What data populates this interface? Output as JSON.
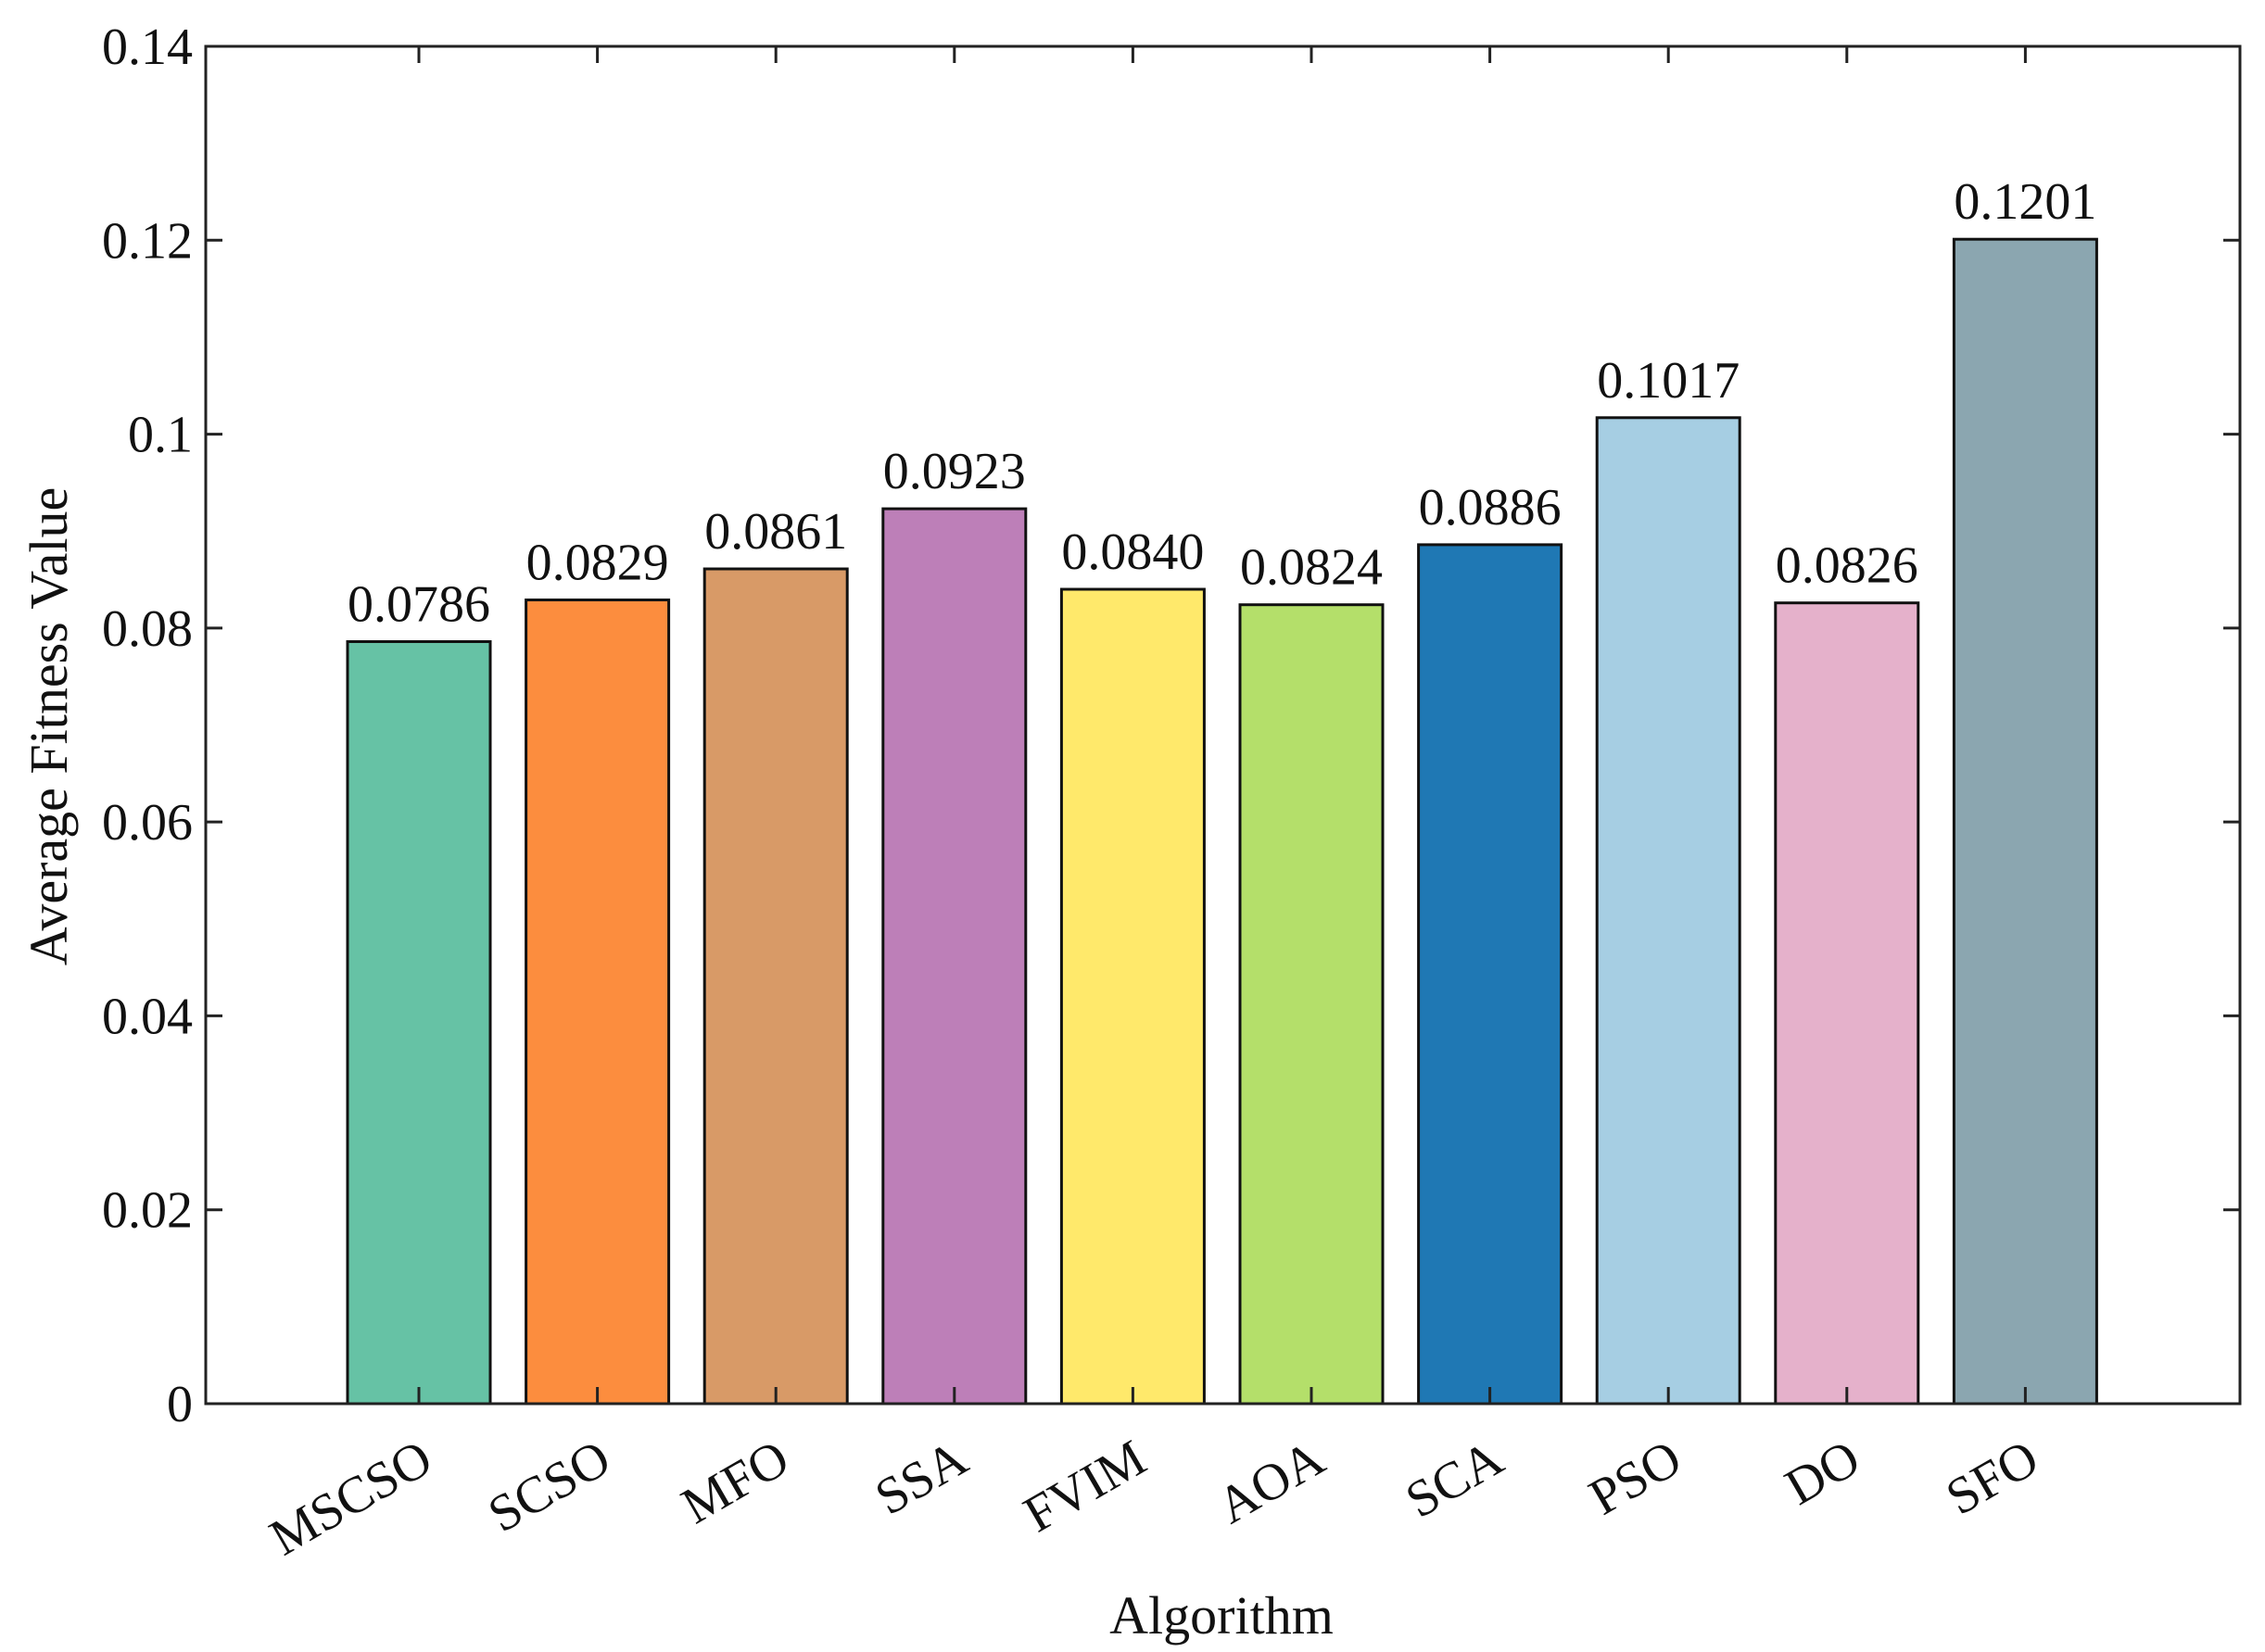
{
  "chart_data": {
    "type": "bar",
    "title": "",
    "xlabel": "Algorithm",
    "ylabel": "Average Fitness Value",
    "ylim": [
      0,
      0.14
    ],
    "yticks": [
      0,
      0.02,
      0.04,
      0.06,
      0.08,
      0.1,
      0.12,
      0.14
    ],
    "ytick_labels": [
      "0",
      "0.02",
      "0.04",
      "0.06",
      "0.08",
      "0.1",
      "0.12",
      "0.14"
    ],
    "grid": false,
    "categories": [
      "MSCSO",
      "SCSO",
      "MFO",
      "SSA",
      "FVIM",
      "AOA",
      "SCA",
      "PSO",
      "DO",
      "SFO"
    ],
    "values": [
      0.0786,
      0.0829,
      0.0861,
      0.0923,
      0.084,
      0.0824,
      0.0886,
      0.1017,
      0.0826,
      0.1201
    ],
    "data_labels": [
      "0.0786",
      "0.0829",
      "0.0861",
      "0.0923",
      "0.0840",
      "0.0824",
      "0.0886",
      "0.1017",
      "0.0826",
      "0.1201"
    ],
    "colors": [
      "#66c2a5",
      "#fc8d3e",
      "#d89a67",
      "#bd7fb8",
      "#ffe96b",
      "#b4df6a",
      "#1f78b4",
      "#a6cee3",
      "#e5b1cb",
      "#8ba6b0"
    ]
  }
}
